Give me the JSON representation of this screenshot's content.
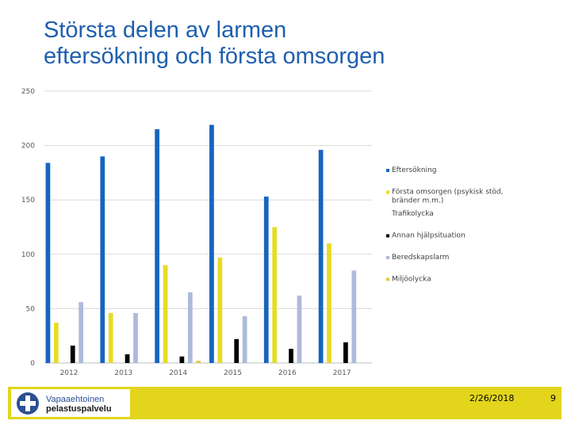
{
  "slide": {
    "title_line1": "Största delen av larmen",
    "title_line2": "eftersökning och första omsorgen",
    "footer_logo_line1": "Vapaaehtoinen",
    "footer_logo_line2": "pelastuspalvelu",
    "footer_date": "2/26/2018",
    "footer_page": "9"
  },
  "colors": {
    "title": "#1e5fae",
    "footer_bar": "#e2d51b"
  },
  "chart_data": {
    "type": "bar",
    "title": "",
    "xlabel": "",
    "ylabel": "",
    "ylim": [
      0,
      250
    ],
    "yticks": [
      "0",
      "50",
      "100",
      "150",
      "200",
      "250"
    ],
    "grid": true,
    "legend_position": "right",
    "categories": [
      "2012",
      "2013",
      "2014",
      "2015",
      "2016",
      "2017"
    ],
    "series": [
      {
        "name": "Eftersökning",
        "color": "#1565c0",
        "values": [
          184,
          190,
          215,
          219,
          153,
          196
        ]
      },
      {
        "name": "Första omsorgen (psykisk stöd, bränder m.m.)",
        "color": "#e6dc26",
        "values": [
          37,
          46,
          90,
          97,
          125,
          110
        ]
      },
      {
        "name": "Trafikolycka",
        "color": "#ffffff",
        "values": [
          0,
          0,
          0,
          0,
          0,
          0
        ]
      },
      {
        "name": "Annan hjälpsituation",
        "color": "#000000",
        "values": [
          16,
          8,
          6,
          22,
          13,
          19
        ]
      },
      {
        "name": "Beredskapslarm",
        "color": "#aebadb",
        "values": [
          56,
          46,
          65,
          43,
          62,
          85
        ]
      },
      {
        "name": "Miljöolycka",
        "color": "#e6c542",
        "values": [
          0,
          0,
          2,
          0,
          0,
          0
        ]
      }
    ]
  }
}
